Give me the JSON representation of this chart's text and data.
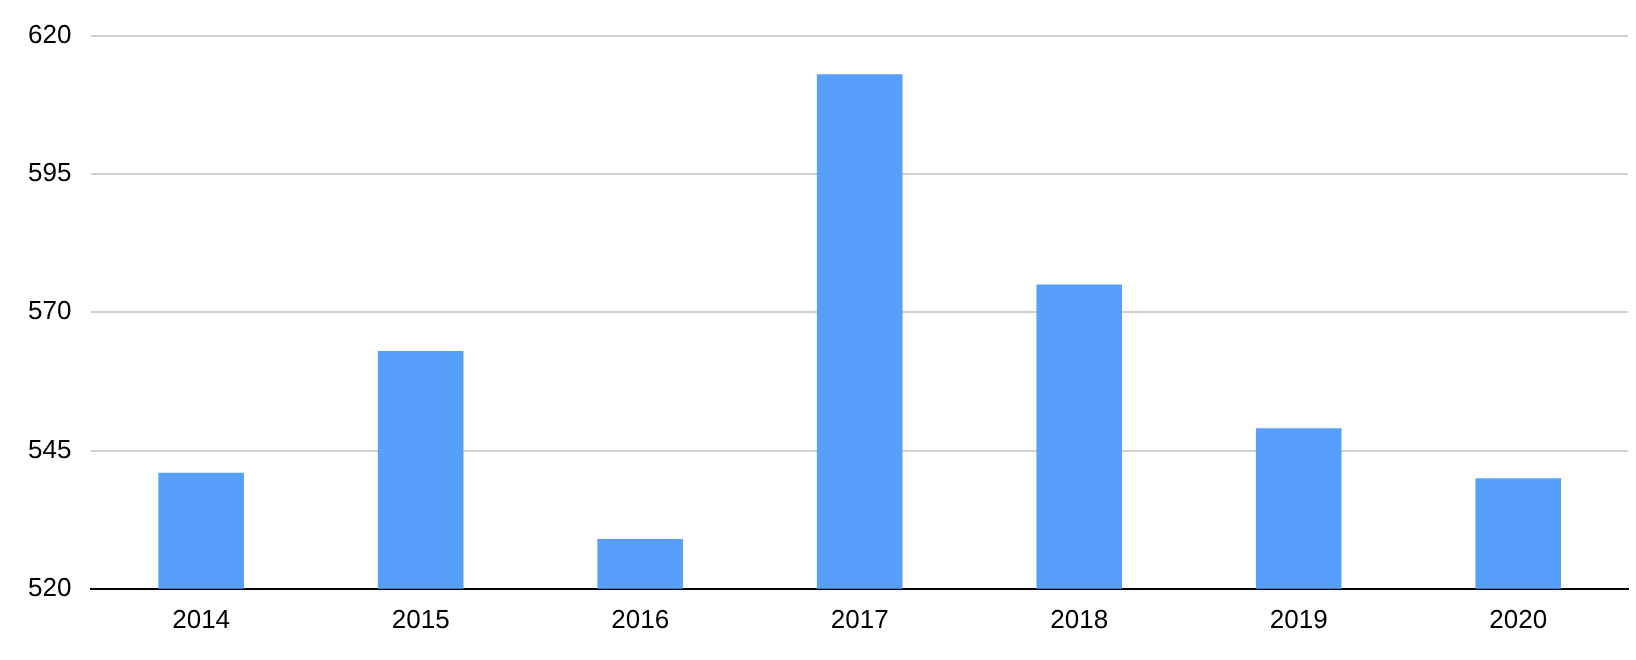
{
  "chart_data": {
    "type": "bar",
    "categories": [
      "2014",
      "2015",
      "2016",
      "2017",
      "2018",
      "2019",
      "2020"
    ],
    "values": [
      541,
      563,
      529,
      613,
      575,
      549,
      540
    ],
    "color": "#589ffc",
    "ylim": [
      520,
      620
    ],
    "yticks": [
      520,
      545,
      570,
      595,
      620
    ],
    "grid": "y",
    "legend": false
  }
}
